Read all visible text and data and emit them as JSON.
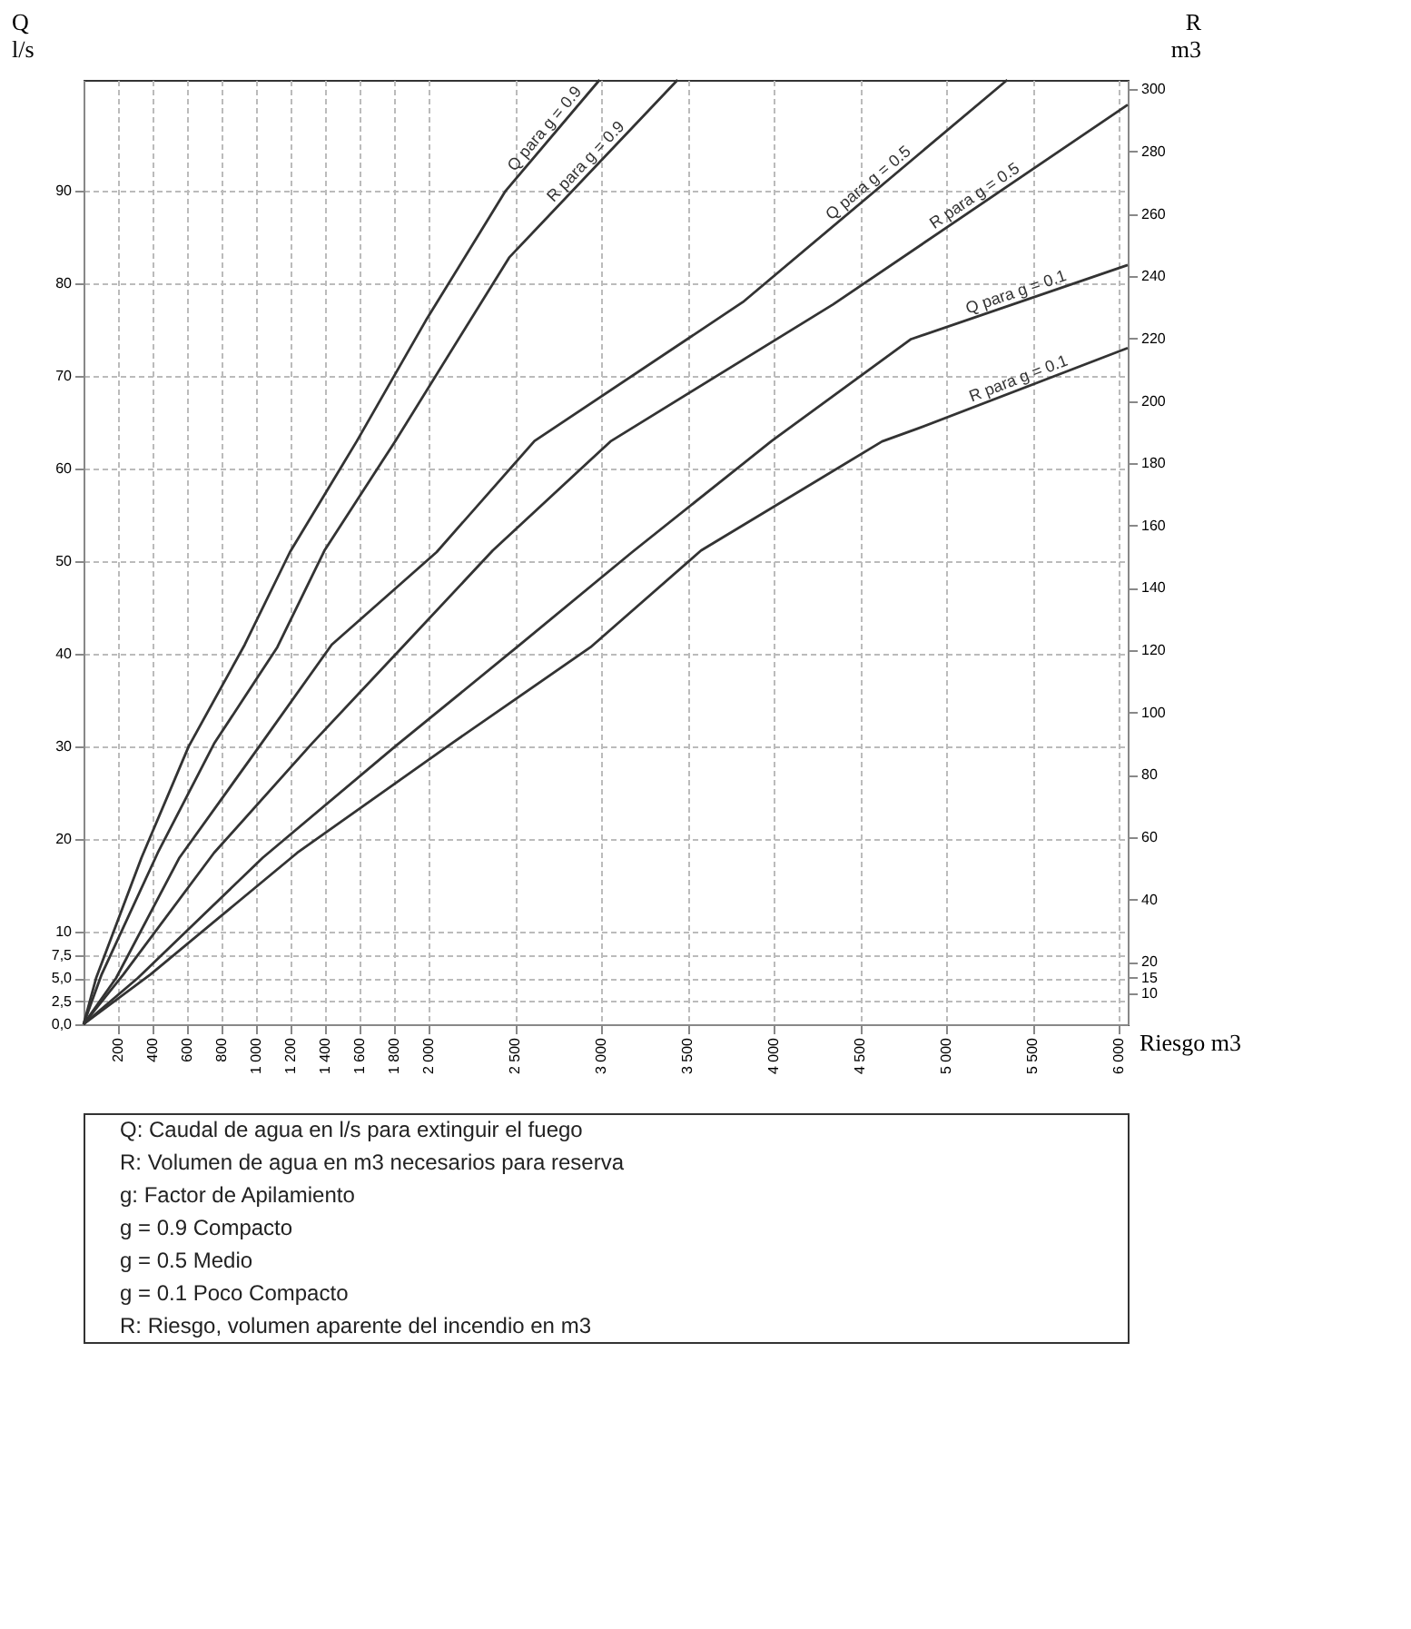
{
  "chart_data": {
    "type": "line",
    "xlabel": "Riesgo m3",
    "ylabel": "Q\nl/s",
    "y2label": "R\nm3",
    "xlim": [
      0,
      6050
    ],
    "ylim": [
      0,
      102
    ],
    "y2lim": [
      0,
      303
    ],
    "xticks": [
      200,
      400,
      600,
      800,
      {
        "value": 1000,
        "label": "1 000"
      },
      {
        "value": 1200,
        "label": "1 200"
      },
      {
        "value": 1400,
        "label": "1 400"
      },
      {
        "value": 1600,
        "label": "1 600"
      },
      {
        "value": 1800,
        "label": "1 800"
      },
      {
        "value": 2000,
        "label": "2 000"
      },
      {
        "value": 2500,
        "label": "2 500"
      },
      {
        "value": 3000,
        "label": "3 000"
      },
      {
        "value": 3500,
        "label": "3 500"
      },
      {
        "value": 4000,
        "label": "4 000"
      },
      {
        "value": 4500,
        "label": "4 500"
      },
      {
        "value": 5000,
        "label": "5 000"
      },
      {
        "value": 5500,
        "label": "5 500"
      },
      {
        "value": 6000,
        "label": "6 000"
      }
    ],
    "yticks": [
      {
        "value": 0,
        "label": "0,0"
      },
      {
        "value": 2.5,
        "label": "2,5"
      },
      {
        "value": 5,
        "label": "5,0"
      },
      {
        "value": 7.5,
        "label": "7,5"
      },
      10,
      20,
      30,
      40,
      50,
      60,
      70,
      80,
      90
    ],
    "y2ticks": [
      10,
      15,
      20,
      40,
      60,
      80,
      100,
      120,
      140,
      160,
      180,
      200,
      220,
      240,
      260,
      280,
      300
    ],
    "grid": true,
    "legend": false,
    "marker": "none",
    "line_style": "solid",
    "series": [
      {
        "name": "Q para g = 0.9",
        "color": "#333333",
        "axis": "y",
        "x": [
          0,
          73,
          336,
          609,
          934,
          1196,
          1584,
          1983,
          2445,
          2990
        ],
        "values": [
          0,
          5,
          18,
          30,
          41,
          51,
          63,
          76,
          90,
          102
        ]
      },
      {
        "name": "R para g = 0.9",
        "color": "#333333",
        "axis": "y2",
        "x": [
          0,
          105,
          430,
          756,
          1123,
          1396,
          1805,
          2466,
          3442
        ],
        "values": [
          0,
          16,
          55,
          90,
          121,
          152,
          187,
          246,
          303
        ]
      },
      {
        "name": "Q para g = 0.5",
        "color": "#333333",
        "axis": "y",
        "x": [
          0,
          189,
          556,
          1018,
          1438,
          2046,
          2613,
          3820,
          5352
        ],
        "values": [
          0,
          5,
          18,
          30,
          41,
          51,
          63,
          78,
          102
        ]
      },
      {
        "name": "R para g = 0.5",
        "color": "#333333",
        "axis": "y2",
        "x": [
          0,
          231,
          756,
          1322,
          1847,
          2371,
          3053,
          4344,
          6050
        ],
        "values": [
          0,
          16,
          55,
          90,
          121,
          152,
          187,
          231,
          295
        ]
      },
      {
        "name": "Q para g = 0.1",
        "color": "#333333",
        "axis": "y",
        "x": [
          0,
          315,
          1039,
          1805,
          2529,
          3179,
          3987,
          4795,
          6050
        ],
        "values": [
          0,
          5,
          18,
          30,
          41,
          51,
          63,
          74,
          82
        ]
      },
      {
        "name": "R para g = 0.1",
        "color": "#333333",
        "axis": "y2",
        "x": [
          0,
          388,
          1238,
          2130,
          2938,
          3578,
          4627,
          4827,
          6050
        ],
        "values": [
          0,
          16,
          55,
          90,
          121,
          152,
          187,
          191,
          217
        ]
      }
    ],
    "annotations": [
      "Q: Caudal de agua en l/s para extinguir el fuego",
      "R: Volumen de agua en m3 necesarios para reserva",
      "g: Factor de Apilamiento",
      "g = 0.9 Compacto",
      "g = 0.5 Medio",
      "g = 0.1 Poco Compacto",
      "R: Riesgo, volumen aparente del incendio en m3"
    ]
  }
}
